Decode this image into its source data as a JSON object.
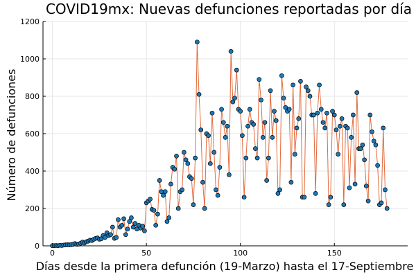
{
  "chart_data": {
    "type": "scatter",
    "title": "COVID19mx: Nuevas defunciones reportadas por día",
    "xlabel": "Días desde la primera defunción (19-Marzo) hasta el 17-Septiembre",
    "ylabel": "Número de defunciones",
    "xlim": [
      -5,
      189
    ],
    "ylim": [
      0,
      1200
    ],
    "x_ticks": [
      0,
      50,
      100,
      150
    ],
    "y_ticks": [
      0,
      200,
      400,
      600,
      800,
      1000,
      1200
    ],
    "grid": true,
    "series": [
      {
        "name": "Nuevas defunciones",
        "line_color": "#e26a3c",
        "marker_color": "#1f78b4",
        "x_start": 0,
        "values": [
          1,
          1,
          2,
          1,
          3,
          2,
          4,
          5,
          6,
          5,
          6,
          8,
          12,
          8,
          9,
          14,
          20,
          15,
          22,
          25,
          30,
          28,
          35,
          40,
          42,
          35,
          38,
          55,
          45,
          70,
          55,
          60,
          100,
          40,
          45,
          140,
          100,
          110,
          145,
          60,
          90,
          130,
          150,
          100,
          120,
          90,
          110,
          95,
          105,
          80,
          230,
          240,
          250,
          195,
          190,
          110,
          170,
          350,
          290,
          270,
          290,
          130,
          150,
          330,
          420,
          410,
          480,
          200,
          290,
          300,
          500,
          460,
          440,
          370,
          360,
          220,
          470,
          1090,
          810,
          620,
          340,
          200,
          600,
          590,
          440,
          710,
          500,
          300,
          270,
          420,
          730,
          660,
          580,
          640,
          380,
          1040,
          770,
          790,
          940,
          730,
          720,
          590,
          260,
          470,
          640,
          730,
          660,
          650,
          520,
          470,
          890,
          780,
          580,
          660,
          350,
          470,
          830,
          580,
          720,
          670,
          280,
          300,
          910,
          790,
          740,
          720,
          730,
          340,
          860,
          490,
          630,
          680,
          880,
          260,
          260,
          850,
          830,
          800,
          700,
          700,
          280,
          710,
          860,
          730,
          660,
          630,
          710,
          220,
          260,
          720,
          700,
          620,
          490,
          640,
          680,
          220,
          640,
          630,
          310,
          580,
          700,
          330,
          820,
          520,
          520,
          540,
          460,
          320,
          240,
          700,
          610,
          560,
          540,
          430,
          220,
          230,
          630,
          300,
          200
        ]
      }
    ]
  }
}
